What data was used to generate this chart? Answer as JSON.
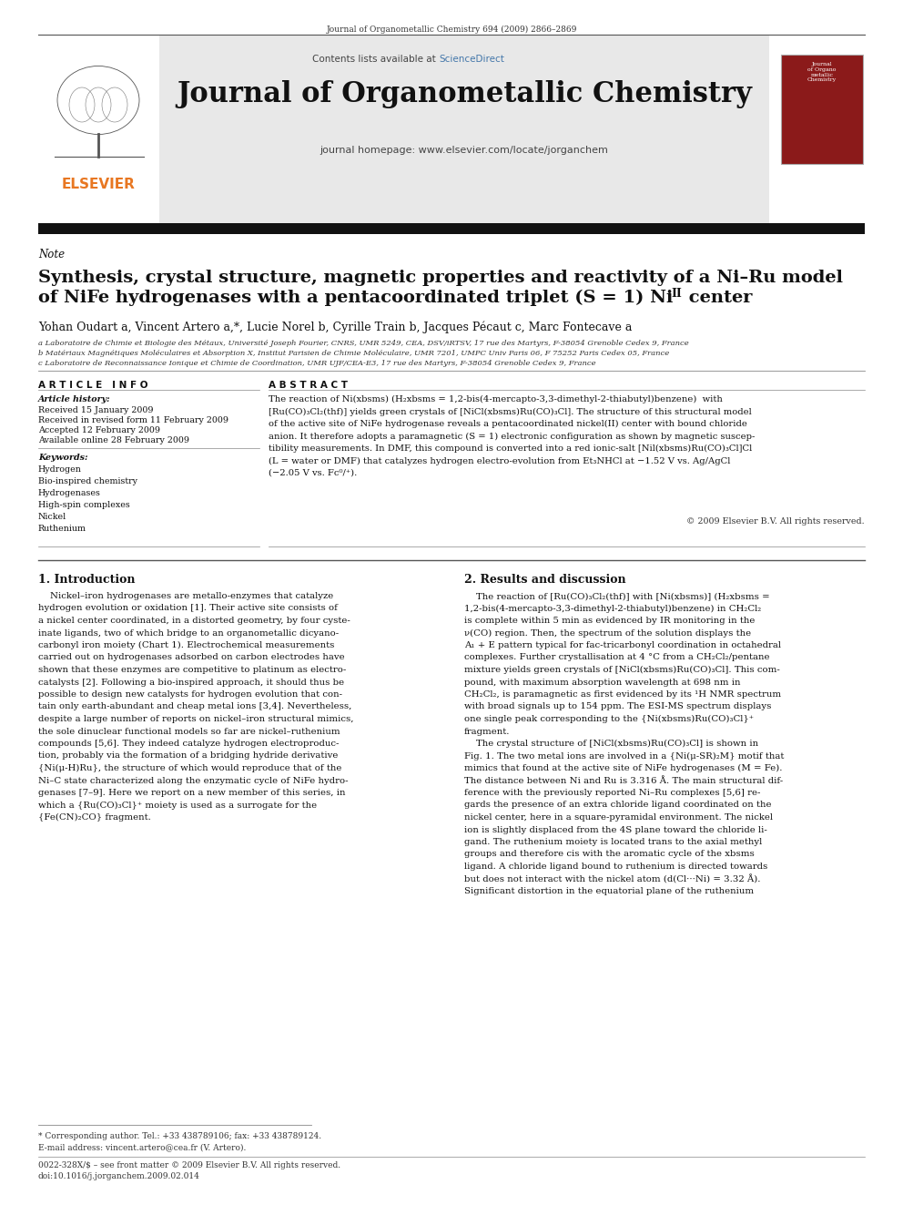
{
  "page_width": 9.92,
  "page_height": 13.23,
  "dpi": 100,
  "bg_color": "#ffffff",
  "journal_ref": "Journal of Organometallic Chemistry 694 (2009) 2866–2869",
  "header_bg": "#e8e8e8",
  "header_sciencedirect_color": "#4477aa",
  "header_journal": "Journal of Organometallic Chemistry",
  "header_homepage": "journal homepage: www.elsevier.com/locate/jorganchem",
  "dark_bar_color": "#1a1a1a",
  "note_label": "Note",
  "title_line1": "Synthesis, crystal structure, magnetic properties and reactivity of a Ni–Ru model",
  "title_line2": "of NiFe hydrogenases with a pentacoordinated triplet (S = 1) Ni",
  "title_super": "II",
  "title_end": " center",
  "authors": "Yohan Oudart a, Vincent Artero a,*, Lucie Norel b, Cyrille Train b, Jacques Pécaut c, Marc Fontecave a",
  "affil_a": "a Laboratoire de Chimie et Biologie des Métaux, Université Joseph Fourier, CNRS, UMR 5249, CEA, DSV/iRTSV, 17 rue des Martyrs, F-38054 Grenoble Cedex 9, France",
  "affil_b": "b Matériaux Magnétiques Moléculaires et Absorption X, Institut Parisien de Chimie Moléculaire, UMR 7201, UMPC Univ Paris 06, F 75252 Paris Cedex 05, France",
  "affil_c": "c Laboratoire de Reconnaissance Ionique et Chimie de Coordination, UMR UJF/CEA-E3, 17 rue des Martyrs, F-38054 Grenoble Cedex 9, France",
  "article_info_header": "A R T I C L E   I N F O",
  "abstract_header": "A B S T R A C T",
  "article_history_label": "Article history:",
  "received1": "Received 15 January 2009",
  "received2": "Received in revised form 11 February 2009",
  "accepted": "Accepted 12 February 2009",
  "available": "Available online 28 February 2009",
  "keywords_label": "Keywords:",
  "keywords": [
    "Hydrogen",
    "Bio-inspired chemistry",
    "Hydrogenases",
    "High-spin complexes",
    "Nickel",
    "Ruthenium"
  ],
  "abstract_lines": [
    "The reaction of Ni(xbsms) (H₂xbsms = 1,2-bis(4-mercapto-3,3-dimethyl-2-thiabutyl)benzene)  with",
    "[Ru(CO)₃Cl₂(thf)] yields green crystals of [NiCl(xbsms)Ru(CO)₃Cl]. The structure of this structural model",
    "of the active site of NiFe hydrogenase reveals a pentacoordinated nickel(II) center with bound chloride",
    "anion. It therefore adopts a paramagnetic (S = 1) electronic configuration as shown by magnetic suscep-",
    "tibility measurements. In DMF, this compound is converted into a red ionic-salt [Nil(xbsms)Ru(CO)₃Cl]Cl",
    "(L = water or DMF) that catalyzes hydrogen electro-evolution from Et₃NHCl at −1.52 V vs. Ag/AgCl",
    "(−2.05 V vs. Fc⁰/⁺)."
  ],
  "copyright": "© 2009 Elsevier B.V. All rights reserved.",
  "intro_header": "1. Introduction",
  "intro_lines": [
    "    Nickel–iron hydrogenases are metallo-enzymes that catalyze",
    "hydrogen evolution or oxidation [1]. Their active site consists of",
    "a nickel center coordinated, in a distorted geometry, by four cyste-",
    "inate ligands, two of which bridge to an organometallic dicyano-",
    "carbonyl iron moiety (Chart 1). Electrochemical measurements",
    "carried out on hydrogenases adsorbed on carbon electrodes have",
    "shown that these enzymes are competitive to platinum as electro-",
    "catalysts [2]. Following a bio-inspired approach, it should thus be",
    "possible to design new catalysts for hydrogen evolution that con-",
    "tain only earth-abundant and cheap metal ions [3,4]. Nevertheless,",
    "despite a large number of reports on nickel–iron structural mimics,",
    "the sole dinuclear functional models so far are nickel–ruthenium",
    "compounds [5,6]. They indeed catalyze hydrogen electroproduc-",
    "tion, probably via the formation of a bridging hydride derivative",
    "{Ni(μ-H)Ru}, the structure of which would reproduce that of the",
    "Ni–C state characterized along the enzymatic cycle of NiFe hydro-",
    "genases [7–9]. Here we report on a new member of this series, in",
    "which a {Ru(CO)₃Cl}⁺ moiety is used as a surrogate for the",
    "{Fe(CN)₂CO} fragment."
  ],
  "results_header": "2. Results and discussion",
  "results_lines": [
    "    The reaction of [Ru(CO)₃Cl₂(thf)] with [Ni(xbsms)] (H₂xbsms =",
    "1,2-bis(4-mercapto-3,3-dimethyl-2-thiabutyl)benzene) in CH₂Cl₂",
    "is complete within 5 min as evidenced by IR monitoring in the",
    "ν(CO) region. Then, the spectrum of the solution displays the",
    "A₁ + E pattern typical for fac-tricarbonyl coordination in octahedral",
    "complexes. Further crystallisation at 4 °C from a CH₂Cl₂/pentane",
    "mixture yields green crystals of [NiCl(xbsms)Ru(CO)₃Cl]. This com-",
    "pound, with maximum absorption wavelength at 698 nm in",
    "CH₂Cl₂, is paramagnetic as first evidenced by its ¹H NMR spectrum",
    "with broad signals up to 154 ppm. The ESI-MS spectrum displays",
    "one single peak corresponding to the {Ni(xbsms)Ru(CO)₃Cl}⁺",
    "fragment.",
    "    The crystal structure of [NiCl(xbsms)Ru(CO)₃Cl] is shown in",
    "Fig. 1. The two metal ions are involved in a {Ni(μ-SR)₂M} motif that",
    "mimics that found at the active site of NiFe hydrogenases (M = Fe).",
    "The distance between Ni and Ru is 3.316 Å. The main structural dif-",
    "ference with the previously reported Ni–Ru complexes [5,6] re-",
    "gards the presence of an extra chloride ligand coordinated on the",
    "nickel center, here in a square-pyramidal environment. The nickel",
    "ion is slightly displaced from the 4S plane toward the chloride li-",
    "gand. The ruthenium moiety is located trans to the axial methyl",
    "groups and therefore cis with the aromatic cycle of the xbsms",
    "ligand. A chloride ligand bound to ruthenium is directed towards",
    "but does not interact with the nickel atom (d(Cl···Ni) = 3.32 Å).",
    "Significant distortion in the equatorial plane of the ruthenium"
  ],
  "footnote_star": "* Corresponding author. Tel.: +33 438789106; fax: +33 438789124.",
  "footnote_email": "E-mail address: vincent.artero@cea.fr (V. Artero).",
  "footnote_issn": "0022-328X/$ – see front matter © 2009 Elsevier B.V. All rights reserved.",
  "footnote_doi": "doi:10.1016/j.jorganchem.2009.02.014",
  "elsevier_color": "#e87722"
}
